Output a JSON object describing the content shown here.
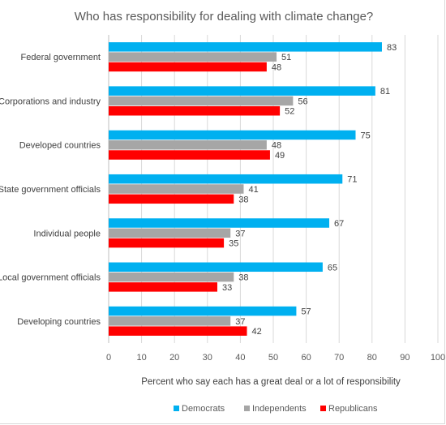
{
  "chart_data": {
    "type": "bar",
    "orientation": "horizontal",
    "title": "Who has responsibility for dealing with climate change?",
    "xlabel": "Percent who say each has a great deal or a lot of responsibility",
    "ylabel": "",
    "xlim": [
      0,
      100
    ],
    "xticks": [
      0,
      10,
      20,
      30,
      40,
      50,
      60,
      70,
      80,
      90,
      100
    ],
    "grid": true,
    "legend_position": "bottom",
    "categories": [
      "Federal government",
      "Corporations and industry",
      "Developed countries",
      "State government officials",
      "Individual people",
      "Local government officials",
      "Developing countries"
    ],
    "series": [
      {
        "name": "Democrats",
        "color": "#00b0f0",
        "values": [
          83,
          81,
          75,
          71,
          67,
          65,
          57
        ]
      },
      {
        "name": "Independents",
        "color": "#a6a6a6",
        "values": [
          51,
          56,
          48,
          41,
          37,
          38,
          37
        ]
      },
      {
        "name": "Republicans",
        "color": "#ff0000",
        "values": [
          48,
          52,
          49,
          38,
          35,
          33,
          42
        ]
      }
    ]
  }
}
